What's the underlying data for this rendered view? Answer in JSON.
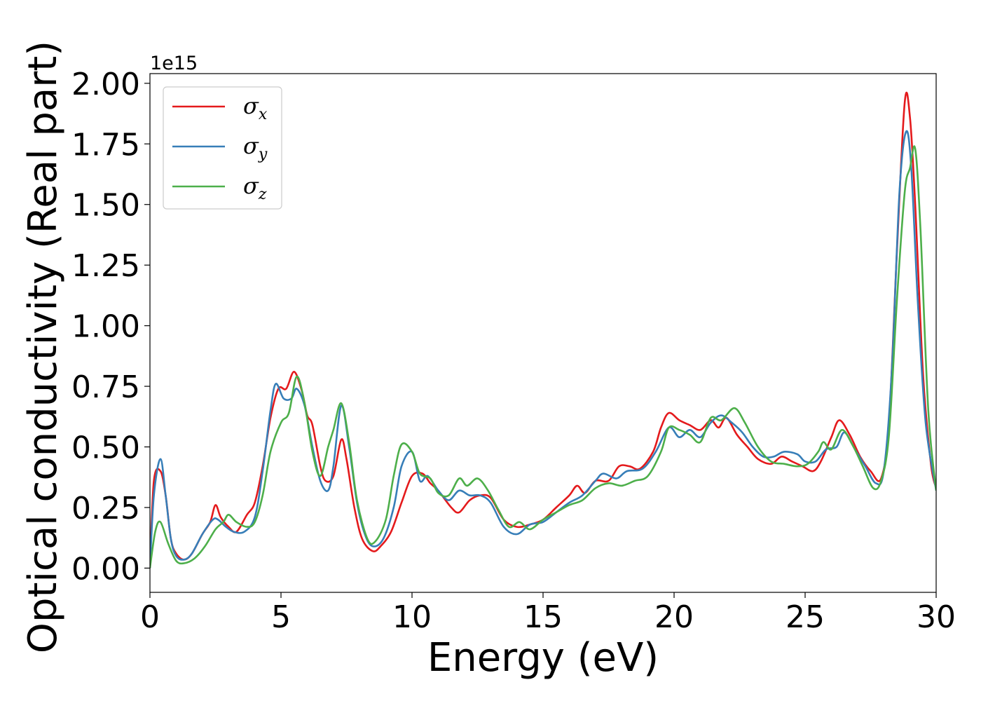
{
  "chart_data": {
    "type": "line",
    "xlabel": "Energy (eV)",
    "ylabel": "Optical conductivity (Real part)",
    "y_offset_label": "1e15",
    "xlim": [
      0,
      30
    ],
    "ylim": [
      -0.1,
      2.04
    ],
    "x_ticks": [
      "0",
      "5",
      "10",
      "15",
      "20",
      "25",
      "30"
    ],
    "y_ticks": [
      "0.00",
      "0.25",
      "0.50",
      "0.75",
      "1.00",
      "1.25",
      "1.50",
      "1.75",
      "2.00"
    ],
    "grid": false,
    "legend_position": "top-left",
    "series": [
      {
        "name": "σx",
        "symbol": "σ",
        "subscript": "x",
        "color": "#e41a1c",
        "points": [
          [
            0,
            0
          ],
          [
            0.15,
            0.36
          ],
          [
            0.4,
            0.4
          ],
          [
            0.6,
            0.3
          ],
          [
            0.8,
            0.12
          ],
          [
            1.0,
            0.06
          ],
          [
            1.3,
            0.035
          ],
          [
            1.6,
            0.06
          ],
          [
            2.0,
            0.14
          ],
          [
            2.3,
            0.19
          ],
          [
            2.5,
            0.26
          ],
          [
            2.7,
            0.21
          ],
          [
            3.0,
            0.17
          ],
          [
            3.3,
            0.15
          ],
          [
            3.7,
            0.22
          ],
          [
            4.0,
            0.27
          ],
          [
            4.3,
            0.42
          ],
          [
            4.6,
            0.62
          ],
          [
            4.9,
            0.74
          ],
          [
            5.2,
            0.74
          ],
          [
            5.5,
            0.81
          ],
          [
            5.8,
            0.73
          ],
          [
            6.0,
            0.63
          ],
          [
            6.2,
            0.59
          ],
          [
            6.5,
            0.42
          ],
          [
            6.7,
            0.36
          ],
          [
            7.0,
            0.38
          ],
          [
            7.3,
            0.53
          ],
          [
            7.5,
            0.45
          ],
          [
            7.8,
            0.25
          ],
          [
            8.1,
            0.12
          ],
          [
            8.5,
            0.07
          ],
          [
            8.8,
            0.09
          ],
          [
            9.2,
            0.15
          ],
          [
            9.6,
            0.27
          ],
          [
            10.0,
            0.38
          ],
          [
            10.4,
            0.39
          ],
          [
            10.7,
            0.35
          ],
          [
            11.0,
            0.32
          ],
          [
            11.5,
            0.25
          ],
          [
            11.8,
            0.23
          ],
          [
            12.2,
            0.28
          ],
          [
            12.6,
            0.3
          ],
          [
            13.0,
            0.29
          ],
          [
            13.5,
            0.2
          ],
          [
            14.0,
            0.17
          ],
          [
            14.5,
            0.18
          ],
          [
            15.0,
            0.2
          ],
          [
            15.5,
            0.25
          ],
          [
            16.0,
            0.3
          ],
          [
            16.3,
            0.34
          ],
          [
            16.6,
            0.31
          ],
          [
            17.0,
            0.36
          ],
          [
            17.5,
            0.36
          ],
          [
            17.9,
            0.42
          ],
          [
            18.3,
            0.42
          ],
          [
            18.7,
            0.41
          ],
          [
            19.2,
            0.48
          ],
          [
            19.5,
            0.58
          ],
          [
            19.8,
            0.64
          ],
          [
            20.2,
            0.61
          ],
          [
            20.6,
            0.59
          ],
          [
            21.0,
            0.57
          ],
          [
            21.4,
            0.61
          ],
          [
            21.7,
            0.58
          ],
          [
            22.0,
            0.62
          ],
          [
            22.4,
            0.55
          ],
          [
            22.8,
            0.5
          ],
          [
            23.2,
            0.45
          ],
          [
            23.7,
            0.43
          ],
          [
            24.1,
            0.46
          ],
          [
            24.5,
            0.44
          ],
          [
            24.9,
            0.42
          ],
          [
            25.3,
            0.4
          ],
          [
            25.6,
            0.44
          ],
          [
            26.0,
            0.54
          ],
          [
            26.3,
            0.61
          ],
          [
            26.7,
            0.55
          ],
          [
            27.1,
            0.46
          ],
          [
            27.5,
            0.4
          ],
          [
            27.9,
            0.37
          ],
          [
            28.2,
            0.6
          ],
          [
            28.5,
            1.3
          ],
          [
            28.8,
            1.92
          ],
          [
            29.0,
            1.86
          ],
          [
            29.2,
            1.5
          ],
          [
            29.5,
            0.8
          ],
          [
            29.8,
            0.43
          ],
          [
            30.0,
            0.33
          ]
        ]
      },
      {
        "name": "σy",
        "symbol": "σ",
        "subscript": "y",
        "color": "#377eb8",
        "points": [
          [
            0,
            0
          ],
          [
            0.15,
            0.3
          ],
          [
            0.4,
            0.45
          ],
          [
            0.6,
            0.3
          ],
          [
            0.8,
            0.12
          ],
          [
            1.0,
            0.05
          ],
          [
            1.3,
            0.035
          ],
          [
            1.6,
            0.06
          ],
          [
            2.0,
            0.14
          ],
          [
            2.4,
            0.2
          ],
          [
            2.6,
            0.2
          ],
          [
            2.9,
            0.17
          ],
          [
            3.2,
            0.15
          ],
          [
            3.6,
            0.15
          ],
          [
            4.0,
            0.21
          ],
          [
            4.3,
            0.4
          ],
          [
            4.6,
            0.65
          ],
          [
            4.8,
            0.76
          ],
          [
            5.1,
            0.7
          ],
          [
            5.4,
            0.7
          ],
          [
            5.6,
            0.74
          ],
          [
            5.9,
            0.67
          ],
          [
            6.2,
            0.5
          ],
          [
            6.5,
            0.36
          ],
          [
            6.8,
            0.32
          ],
          [
            7.0,
            0.42
          ],
          [
            7.3,
            0.67
          ],
          [
            7.6,
            0.5
          ],
          [
            7.9,
            0.27
          ],
          [
            8.2,
            0.14
          ],
          [
            8.5,
            0.09
          ],
          [
            8.9,
            0.12
          ],
          [
            9.3,
            0.25
          ],
          [
            9.6,
            0.42
          ],
          [
            10.0,
            0.48
          ],
          [
            10.3,
            0.36
          ],
          [
            10.6,
            0.38
          ],
          [
            11.0,
            0.32
          ],
          [
            11.4,
            0.28
          ],
          [
            11.8,
            0.32
          ],
          [
            12.2,
            0.3
          ],
          [
            12.6,
            0.3
          ],
          [
            13.0,
            0.27
          ],
          [
            13.5,
            0.17
          ],
          [
            14.0,
            0.14
          ],
          [
            14.5,
            0.18
          ],
          [
            15.0,
            0.19
          ],
          [
            15.5,
            0.23
          ],
          [
            16.0,
            0.27
          ],
          [
            16.5,
            0.3
          ],
          [
            17.0,
            0.36
          ],
          [
            17.3,
            0.39
          ],
          [
            17.8,
            0.37
          ],
          [
            18.2,
            0.4
          ],
          [
            18.8,
            0.41
          ],
          [
            19.3,
            0.48
          ],
          [
            19.8,
            0.58
          ],
          [
            20.2,
            0.54
          ],
          [
            20.6,
            0.57
          ],
          [
            21.0,
            0.54
          ],
          [
            21.4,
            0.6
          ],
          [
            21.8,
            0.63
          ],
          [
            22.2,
            0.6
          ],
          [
            22.6,
            0.56
          ],
          [
            23.0,
            0.5
          ],
          [
            23.4,
            0.46
          ],
          [
            23.8,
            0.46
          ],
          [
            24.2,
            0.48
          ],
          [
            24.7,
            0.47
          ],
          [
            25.0,
            0.44
          ],
          [
            25.4,
            0.44
          ],
          [
            25.8,
            0.49
          ],
          [
            26.2,
            0.5
          ],
          [
            26.5,
            0.56
          ],
          [
            26.9,
            0.49
          ],
          [
            27.3,
            0.42
          ],
          [
            27.7,
            0.35
          ],
          [
            28.0,
            0.4
          ],
          [
            28.3,
            0.8
          ],
          [
            28.6,
            1.55
          ],
          [
            28.85,
            1.8
          ],
          [
            29.05,
            1.65
          ],
          [
            29.3,
            1.1
          ],
          [
            29.6,
            0.6
          ],
          [
            30.0,
            0.32
          ]
        ]
      },
      {
        "name": "σz",
        "symbol": "σ",
        "subscript": "z",
        "color": "#4daf4a",
        "points": [
          [
            0,
            0
          ],
          [
            0.2,
            0.15
          ],
          [
            0.4,
            0.19
          ],
          [
            0.7,
            0.1
          ],
          [
            1.0,
            0.03
          ],
          [
            1.3,
            0.02
          ],
          [
            1.7,
            0.04
          ],
          [
            2.1,
            0.09
          ],
          [
            2.5,
            0.16
          ],
          [
            2.8,
            0.19
          ],
          [
            3.0,
            0.22
          ],
          [
            3.3,
            0.19
          ],
          [
            3.7,
            0.17
          ],
          [
            4.0,
            0.19
          ],
          [
            4.3,
            0.3
          ],
          [
            4.6,
            0.48
          ],
          [
            5.0,
            0.6
          ],
          [
            5.3,
            0.64
          ],
          [
            5.6,
            0.79
          ],
          [
            5.9,
            0.68
          ],
          [
            6.2,
            0.48
          ],
          [
            6.5,
            0.38
          ],
          [
            6.8,
            0.5
          ],
          [
            7.0,
            0.57
          ],
          [
            7.3,
            0.68
          ],
          [
            7.6,
            0.52
          ],
          [
            7.9,
            0.28
          ],
          [
            8.3,
            0.12
          ],
          [
            8.6,
            0.11
          ],
          [
            9.0,
            0.2
          ],
          [
            9.3,
            0.38
          ],
          [
            9.6,
            0.51
          ],
          [
            10.0,
            0.48
          ],
          [
            10.3,
            0.39
          ],
          [
            10.7,
            0.37
          ],
          [
            11.0,
            0.31
          ],
          [
            11.4,
            0.3
          ],
          [
            11.8,
            0.37
          ],
          [
            12.1,
            0.34
          ],
          [
            12.5,
            0.37
          ],
          [
            12.9,
            0.32
          ],
          [
            13.3,
            0.24
          ],
          [
            13.7,
            0.17
          ],
          [
            14.1,
            0.19
          ],
          [
            14.5,
            0.16
          ],
          [
            15.0,
            0.2
          ],
          [
            15.5,
            0.23
          ],
          [
            16.0,
            0.26
          ],
          [
            16.5,
            0.28
          ],
          [
            17.0,
            0.33
          ],
          [
            17.5,
            0.35
          ],
          [
            18.0,
            0.34
          ],
          [
            18.5,
            0.36
          ],
          [
            19.0,
            0.38
          ],
          [
            19.5,
            0.48
          ],
          [
            19.8,
            0.58
          ],
          [
            20.2,
            0.57
          ],
          [
            20.6,
            0.55
          ],
          [
            21.0,
            0.52
          ],
          [
            21.4,
            0.62
          ],
          [
            21.8,
            0.61
          ],
          [
            22.3,
            0.66
          ],
          [
            22.7,
            0.6
          ],
          [
            23.2,
            0.5
          ],
          [
            23.7,
            0.44
          ],
          [
            24.2,
            0.43
          ],
          [
            24.7,
            0.42
          ],
          [
            25.1,
            0.43
          ],
          [
            25.5,
            0.48
          ],
          [
            25.7,
            0.52
          ],
          [
            26.0,
            0.49
          ],
          [
            26.4,
            0.57
          ],
          [
            26.8,
            0.51
          ],
          [
            27.2,
            0.42
          ],
          [
            27.6,
            0.33
          ],
          [
            27.9,
            0.36
          ],
          [
            28.2,
            0.55
          ],
          [
            28.5,
            1.1
          ],
          [
            28.8,
            1.55
          ],
          [
            29.0,
            1.65
          ],
          [
            29.2,
            1.73
          ],
          [
            29.4,
            1.4
          ],
          [
            29.7,
            0.65
          ],
          [
            30.0,
            0.32
          ]
        ]
      }
    ]
  }
}
